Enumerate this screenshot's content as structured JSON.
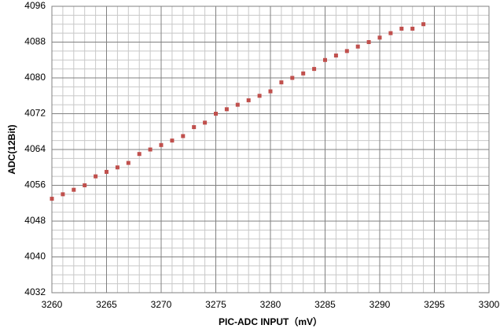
{
  "chart_data": {
    "type": "scatter",
    "x_label": "PIC-ADC INPUT（mV）",
    "y_label": "ADC(12Bit)",
    "series": [
      {
        "color": "#c0504d",
        "x": [
          3260,
          3261,
          3262,
          3263,
          3264,
          3265,
          3266,
          3267,
          3268,
          3269,
          3270,
          3271,
          3272,
          3273,
          3274,
          3275,
          3276,
          3277,
          3278,
          3279,
          3280,
          3281,
          3282,
          3283,
          3284,
          3285,
          3286,
          3287,
          3288,
          3289,
          3290,
          3291,
          3292,
          3293,
          3294
        ],
        "values": [
          4053,
          4054,
          4055,
          4056,
          4058,
          4059,
          4060,
          4061,
          4063,
          4064,
          4065,
          4066,
          4067,
          4069,
          4070,
          4072,
          4073,
          4074,
          4075,
          4076,
          4077,
          4079,
          4080,
          4081,
          4082,
          4084,
          4085,
          4086,
          4087,
          4088,
          4089,
          4090,
          4091,
          4091,
          4092
        ]
      }
    ],
    "xlim": [
      3260,
      3300
    ],
    "xticks": [
      3260,
      3265,
      3270,
      3275,
      3280,
      3285,
      3290,
      3295,
      3300
    ],
    "ylim": [
      4032,
      4096
    ],
    "yticks": [
      4032,
      4040,
      4048,
      4056,
      4064,
      4072,
      4080,
      4088,
      4096
    ],
    "grid": true
  }
}
